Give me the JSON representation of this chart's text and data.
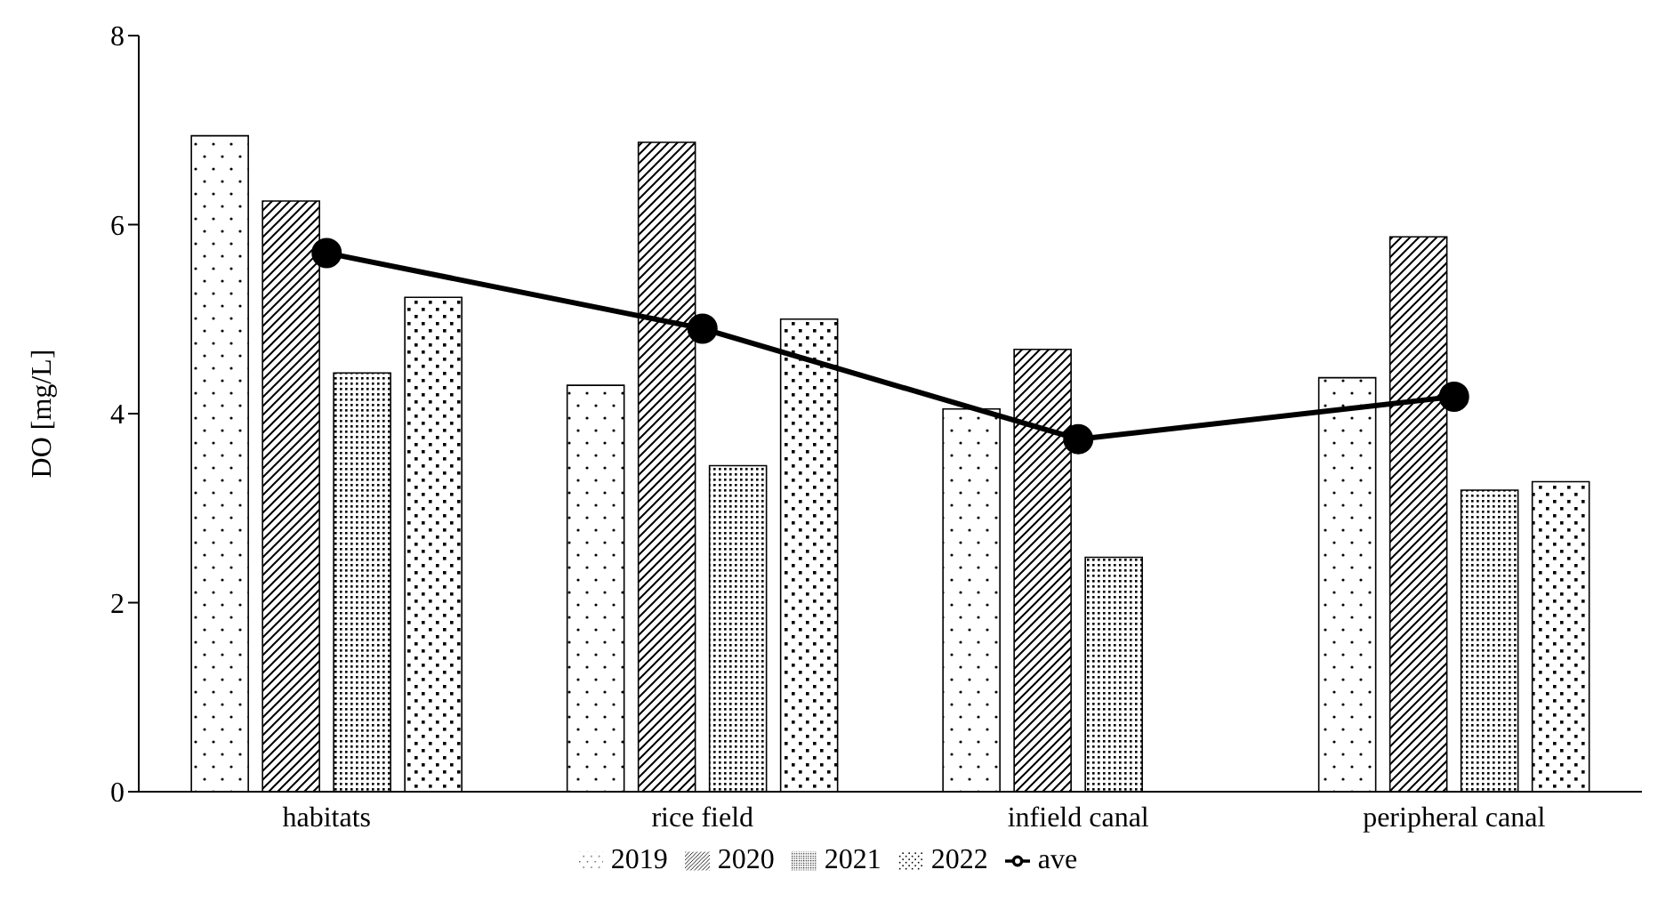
{
  "chart_data": {
    "type": "bar",
    "ylabel": "DO [mg/L]",
    "categories": [
      "habitats",
      "rice field",
      "infield canal",
      "peripheral canal"
    ],
    "series": [
      {
        "name": "2019",
        "color": "#000000",
        "values": [
          6.94,
          4.3,
          4.05,
          4.38
        ]
      },
      {
        "name": "2020",
        "color": "#000000",
        "values": [
          6.25,
          6.87,
          4.68,
          5.87
        ]
      },
      {
        "name": "2021",
        "color": "#000000",
        "values": [
          4.43,
          3.45,
          2.48,
          3.19
        ]
      },
      {
        "name": "2022",
        "color": "#000000",
        "values": [
          5.23,
          5.0,
          null,
          3.28
        ]
      },
      {
        "name": "ave",
        "type": "line",
        "color": "#000000",
        "values": [
          5.7,
          4.9,
          3.73,
          4.18
        ]
      }
    ],
    "ylim": [
      0,
      8
    ],
    "yticks": [
      0,
      2,
      4,
      6,
      8
    ],
    "grid": false,
    "legend": "bottom",
    "marker": "circle",
    "line_style": "solid"
  }
}
